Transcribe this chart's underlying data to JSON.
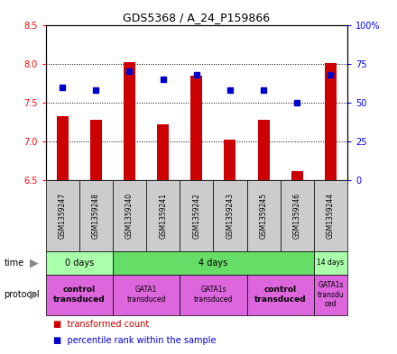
{
  "title": "GDS5368 / A_24_P159866",
  "samples": [
    "GSM1359247",
    "GSM1359248",
    "GSM1359240",
    "GSM1359241",
    "GSM1359242",
    "GSM1359243",
    "GSM1359245",
    "GSM1359246",
    "GSM1359244"
  ],
  "transformed_counts": [
    7.33,
    7.28,
    8.02,
    7.22,
    7.85,
    7.02,
    7.28,
    6.62,
    8.01
  ],
  "percentile_ranks": [
    60,
    58,
    70,
    65,
    68,
    58,
    58,
    50,
    68
  ],
  "ylim_left": [
    6.5,
    8.5
  ],
  "ylim_right": [
    0,
    100
  ],
  "yticks_left": [
    6.5,
    7.0,
    7.5,
    8.0,
    8.5
  ],
  "yticks_right": [
    0,
    25,
    50,
    75,
    100
  ],
  "ytick_labels_right": [
    "0",
    "25",
    "50",
    "75",
    "100%"
  ],
  "bar_color": "#cc0000",
  "dot_color": "#0000cc",
  "bar_bottom": 6.5,
  "bar_width": 0.35,
  "time_groups": [
    {
      "label": "0 days",
      "start": 0,
      "end": 2,
      "color": "#aaffaa"
    },
    {
      "label": "4 days",
      "start": 2,
      "end": 8,
      "color": "#66dd66"
    },
    {
      "label": "14 days",
      "start": 8,
      "end": 9,
      "color": "#aaffaa"
    }
  ],
  "protocol_groups": [
    {
      "label": "control\ntransduced",
      "start": 0,
      "end": 2,
      "color": "#dd66dd",
      "bold": true
    },
    {
      "label": "GATA1\ntransduced",
      "start": 2,
      "end": 4,
      "color": "#dd66dd",
      "bold": false
    },
    {
      "label": "GATA1s\ntransduced",
      "start": 4,
      "end": 6,
      "color": "#dd66dd",
      "bold": false
    },
    {
      "label": "control\ntransduced",
      "start": 6,
      "end": 8,
      "color": "#dd66dd",
      "bold": true
    },
    {
      "label": "GATA1s\ntransdu\nced",
      "start": 8,
      "end": 9,
      "color": "#dd66dd",
      "bold": false
    }
  ]
}
